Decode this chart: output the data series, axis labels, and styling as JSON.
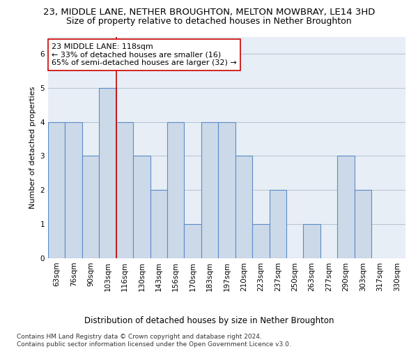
{
  "title": "23, MIDDLE LANE, NETHER BROUGHTON, MELTON MOWBRAY, LE14 3HD",
  "subtitle": "Size of property relative to detached houses in Nether Broughton",
  "xlabel": "Distribution of detached houses by size in Nether Broughton",
  "ylabel": "Number of detached properties",
  "categories": [
    "63sqm",
    "76sqm",
    "90sqm",
    "103sqm",
    "116sqm",
    "130sqm",
    "143sqm",
    "156sqm",
    "170sqm",
    "183sqm",
    "197sqm",
    "210sqm",
    "223sqm",
    "237sqm",
    "250sqm",
    "263sqm",
    "277sqm",
    "290sqm",
    "303sqm",
    "317sqm",
    "330sqm"
  ],
  "values": [
    4,
    4,
    3,
    5,
    4,
    3,
    2,
    4,
    1,
    4,
    4,
    3,
    1,
    2,
    0,
    1,
    0,
    3,
    2,
    0,
    0
  ],
  "bar_color": "#ccd9e8",
  "bar_edge_color": "#5b8cc8",
  "property_line_index": 4,
  "property_line_color": "#cc0000",
  "annotation_line1": "23 MIDDLE LANE: 118sqm",
  "annotation_line2": "← 33% of detached houses are smaller (16)",
  "annotation_line3": "65% of semi-detached houses are larger (32) →",
  "annotation_box_color": "#ffffff",
  "annotation_box_edge_color": "#cc0000",
  "ylim": [
    0,
    6.5
  ],
  "yticks": [
    0,
    1,
    2,
    3,
    4,
    5,
    6
  ],
  "footer_text": "Contains HM Land Registry data © Crown copyright and database right 2024.\nContains public sector information licensed under the Open Government Licence v3.0.",
  "title_fontsize": 9.5,
  "subtitle_fontsize": 9,
  "xlabel_fontsize": 8.5,
  "ylabel_fontsize": 8,
  "tick_fontsize": 7.5,
  "annotation_fontsize": 8,
  "footer_fontsize": 6.5,
  "bg_color": "#e8eef5"
}
